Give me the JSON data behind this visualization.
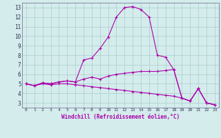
{
  "background_color": "#d4ecec",
  "line_color": "#aa00aa",
  "grid_color": "#aacccc",
  "hours": [
    0,
    1,
    2,
    3,
    4,
    5,
    6,
    7,
    8,
    9,
    10,
    11,
    12,
    13,
    14,
    15,
    16,
    17,
    18,
    19,
    20,
    21,
    22,
    23
  ],
  "line1": [
    5.0,
    4.8,
    5.1,
    5.0,
    5.2,
    5.3,
    5.2,
    7.5,
    7.7,
    8.7,
    9.9,
    12.0,
    13.0,
    13.1,
    12.8,
    12.0,
    8.0,
    7.8,
    6.5,
    3.5,
    3.2,
    4.5,
    3.0,
    2.8
  ],
  "line2": [
    5.0,
    4.8,
    5.1,
    5.0,
    5.2,
    5.3,
    5.2,
    5.5,
    5.7,
    5.5,
    5.8,
    6.0,
    6.1,
    6.2,
    6.3,
    6.3,
    6.3,
    6.4,
    6.5,
    3.5,
    3.2,
    4.5,
    3.0,
    2.8
  ],
  "line3": [
    5.0,
    4.8,
    5.0,
    4.9,
    5.0,
    5.0,
    4.9,
    4.8,
    4.7,
    4.6,
    4.5,
    4.4,
    4.3,
    4.2,
    4.1,
    4.0,
    3.9,
    3.8,
    3.7,
    3.5,
    3.2,
    4.5,
    3.0,
    2.8
  ],
  "xlabel": "Windchill (Refroidissement éolien,°C)",
  "ylim": [
    2.5,
    13.5
  ],
  "yticks": [
    3,
    4,
    5,
    6,
    7,
    8,
    9,
    10,
    11,
    12,
    13
  ],
  "xticks": [
    0,
    1,
    2,
    3,
    4,
    5,
    6,
    7,
    8,
    9,
    10,
    11,
    12,
    13,
    14,
    15,
    16,
    17,
    18,
    19,
    20,
    21,
    22,
    23
  ],
  "figsize": [
    3.2,
    2.0
  ],
  "dpi": 100
}
